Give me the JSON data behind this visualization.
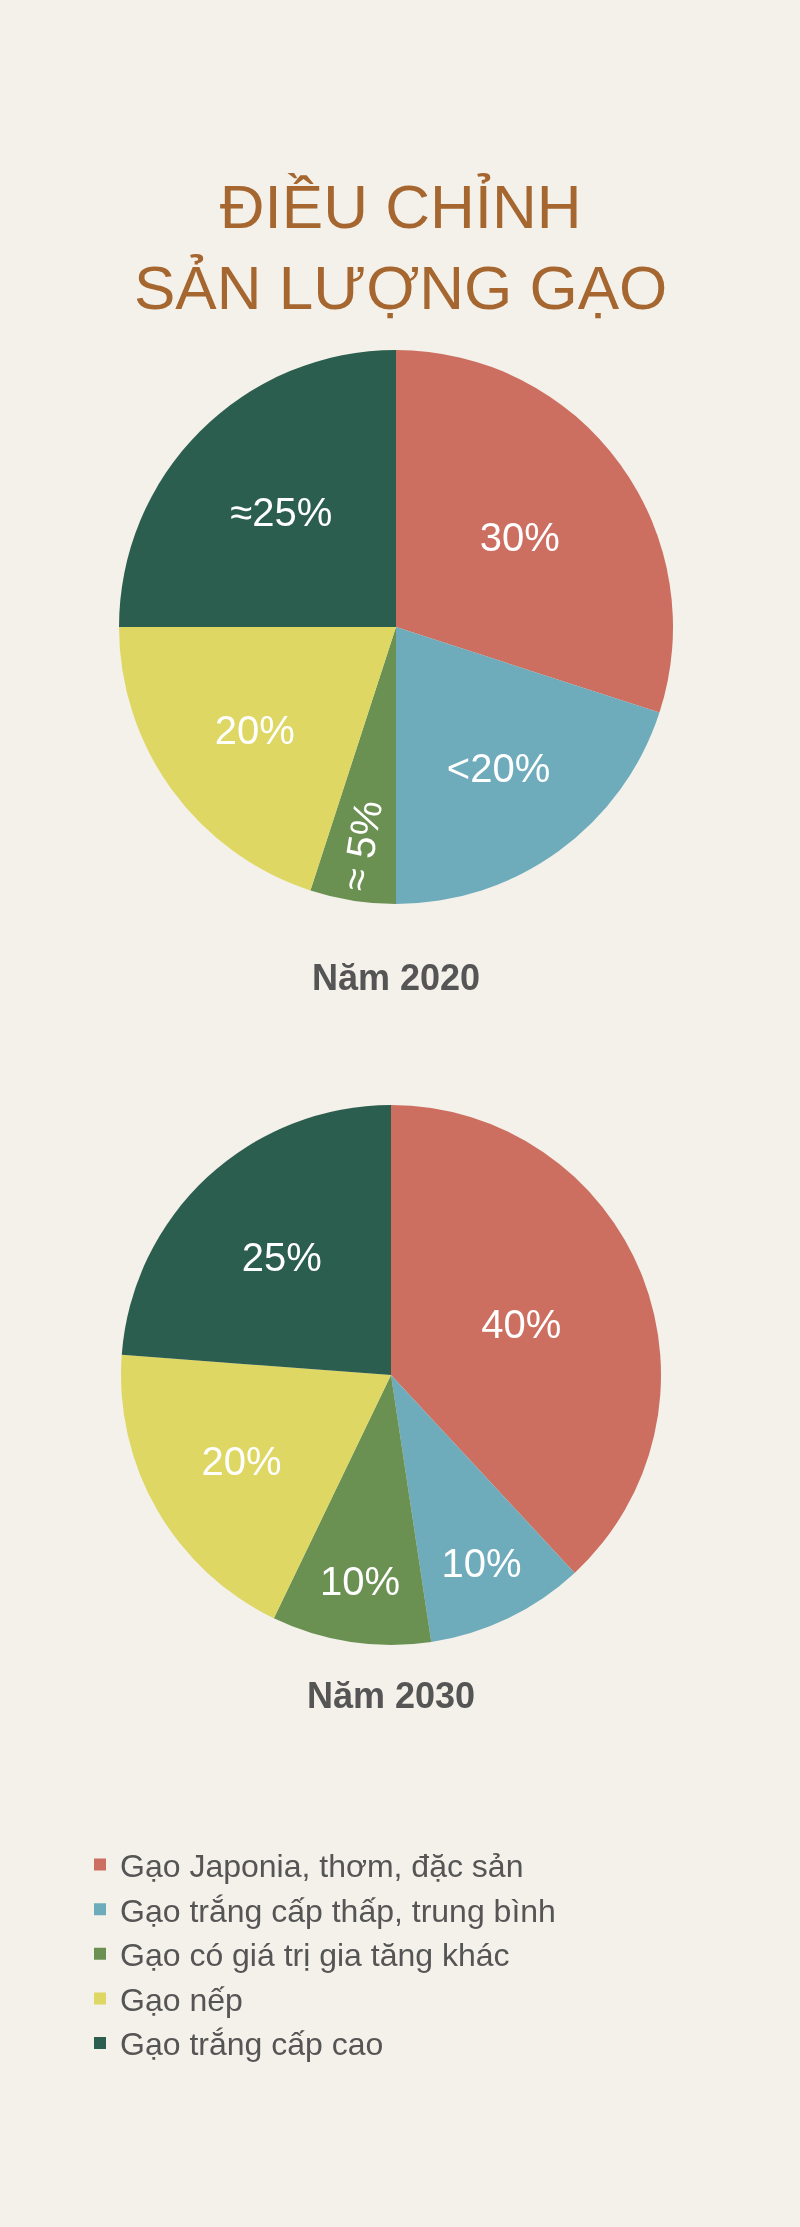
{
  "chart_data": [
    {
      "type": "pie",
      "title": "ĐIỀU CHỈNH\nSẢN LƯỢNG GẠO",
      "subtitle": "Năm 2020",
      "categories": [
        "Gạo Japonia, thơm, đặc sản",
        "Gạo trắng cấp thấp, trung bình",
        "Gạo có giá trị gia tăng khác",
        "Gạo nếp",
        "Gạo trắng cấp cao"
      ],
      "values": [
        30,
        20,
        5,
        20,
        25
      ],
      "colors": [
        "#cc6f61",
        "#6eacbb",
        "#6b9152",
        "#ded763",
        "#2c5e4f"
      ],
      "value_labels": [
        "30%",
        "<20%",
        "≈ 5%",
        "20%",
        "≈25%"
      ],
      "legend": "bottom"
    },
    {
      "type": "pie",
      "subtitle": "Năm 2030",
      "categories": [
        null,
        null,
        null,
        null,
        null
      ],
      "values": [
        40,
        10,
        10,
        20,
        25
      ],
      "colors": [
        "#cc6f61",
        "#6eacbb",
        "#6b9152",
        "#ded763",
        "#2c5e4f"
      ],
      "value_labels": [
        "40%",
        "10%",
        "10%",
        "20%",
        "25%"
      ]
    }
  ]
}
